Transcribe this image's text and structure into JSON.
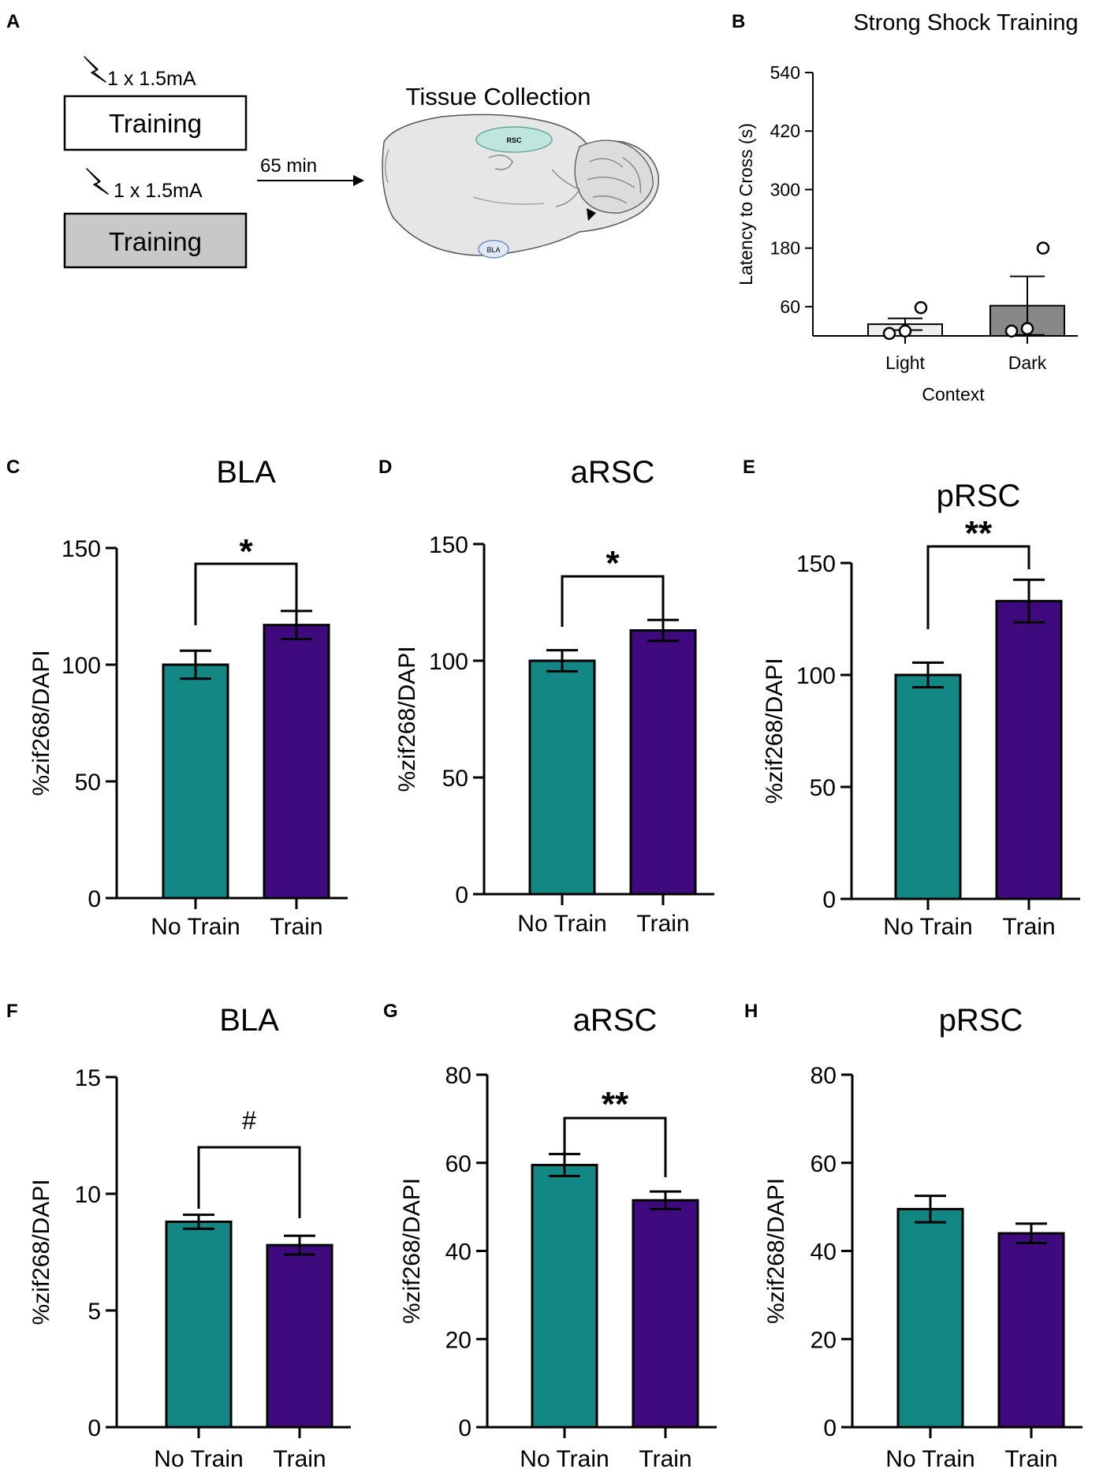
{
  "panel_a": {
    "label": "A",
    "shock_top": "1 x 1.5mA",
    "shock_bottom": "1 x 1.5mA",
    "box_top": "Training",
    "box_bottom": "Training",
    "delay": "65 min",
    "tissue_title": "Tissue Collection",
    "region_rsc": "RSC",
    "region_bla": "BLA",
    "colors": {
      "box_bottom_fill": "#c8c8c8",
      "rsc_fill": "#bfe6de",
      "bla_fill": "#dfe8f5",
      "brain_fill": "#e6e6e6"
    }
  },
  "colors": {
    "no_train": "#128784",
    "train": "#3f0a7d",
    "light": "#eeeeee",
    "dark": "#888888"
  },
  "chart_data": [
    {
      "id": "B",
      "label": "B",
      "type": "bar",
      "title": "Strong Shock Training",
      "xlabel": "Context",
      "ylabel": "Latency to Cross (s)",
      "categories": [
        "Light",
        "Dark"
      ],
      "values": [
        24,
        62
      ],
      "errors": [
        12,
        60
      ],
      "points": [
        [
          5,
          10,
          58
        ],
        [
          10,
          15,
          180
        ]
      ],
      "ylim": [
        0,
        540
      ],
      "yticks": [
        60,
        180,
        300,
        420,
        540
      ],
      "significance": null
    },
    {
      "id": "C",
      "label": "C",
      "type": "bar",
      "title": "BLA",
      "xlabel": "",
      "ylabel": "%zif268/DAPI",
      "categories": [
        "No Train",
        "Train"
      ],
      "values": [
        100,
        117
      ],
      "errors": [
        6,
        6
      ],
      "ylim": [
        0,
        150
      ],
      "yticks": [
        0,
        50,
        100,
        150
      ],
      "significance": "*"
    },
    {
      "id": "D",
      "label": "D",
      "type": "bar",
      "title": "aRSC",
      "xlabel": "",
      "ylabel": "%zif268/DAPI",
      "categories": [
        "No Train",
        "Train"
      ],
      "values": [
        100,
        113
      ],
      "errors": [
        4.5,
        4.5
      ],
      "ylim": [
        0,
        150
      ],
      "yticks": [
        0,
        50,
        100,
        150
      ],
      "significance": "*"
    },
    {
      "id": "E",
      "label": "E",
      "type": "bar",
      "title": "pRSC",
      "xlabel": "",
      "ylabel": "%zif268/DAPI",
      "categories": [
        "No Train",
        "Train"
      ],
      "values": [
        100,
        133
      ],
      "errors": [
        5.5,
        9.5
      ],
      "ylim": [
        0,
        150
      ],
      "yticks": [
        0,
        50,
        100,
        150
      ],
      "significance": "**"
    },
    {
      "id": "F",
      "label": "F",
      "type": "bar",
      "title": "BLA",
      "xlabel": "",
      "ylabel": "%zif268/DAPI",
      "categories": [
        "No Train",
        "Train"
      ],
      "values": [
        8.8,
        7.8
      ],
      "errors": [
        0.3,
        0.4
      ],
      "ylim": [
        0,
        15
      ],
      "yticks": [
        0,
        5,
        10,
        15
      ],
      "significance": "#"
    },
    {
      "id": "G",
      "label": "G",
      "type": "bar",
      "title": "aRSC",
      "xlabel": "",
      "ylabel": "%zif268/DAPI",
      "categories": [
        "No Train",
        "Train"
      ],
      "values": [
        59.5,
        51.5
      ],
      "errors": [
        2.5,
        2
      ],
      "ylim": [
        0,
        80
      ],
      "yticks": [
        0,
        20,
        40,
        60,
        80
      ],
      "significance": "**"
    },
    {
      "id": "H",
      "label": "H",
      "type": "bar",
      "title": "pRSC",
      "xlabel": "",
      "ylabel": "%zif268/DAPI",
      "categories": [
        "No Train",
        "Train"
      ],
      "values": [
        49.5,
        44
      ],
      "errors": [
        3,
        2.2
      ],
      "ylim": [
        0,
        80
      ],
      "yticks": [
        0,
        20,
        40,
        60,
        80
      ],
      "significance": null
    }
  ]
}
